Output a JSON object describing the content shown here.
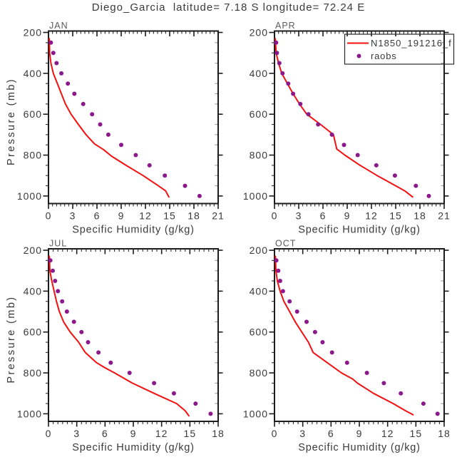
{
  "title": "Diego_Garcia  latitude= 7.18 S longitude= 72.24 E",
  "colors": {
    "model_line": "#f21010",
    "raobs_dot": "#8c188c",
    "axis": "#1c1c1c",
    "text": "#3a3a3a",
    "month_label": "#5a5a5a",
    "minor_tick_inside": "#9a9a9a",
    "background": "#ffffff"
  },
  "legend": {
    "entries": [
      {
        "label": "N1850_191216_f",
        "marker": "line",
        "color": "#f21010"
      },
      {
        "label": "raobs",
        "marker": "dot",
        "color": "#8c188c"
      }
    ]
  },
  "chart_data": [
    {
      "type": "line",
      "panel_label": "JAN",
      "xlabel": "Specific Humidity (g/kg)",
      "ylabel": "Pressure (mb)",
      "xlim": [
        0,
        21
      ],
      "xticks": [
        0,
        3,
        6,
        9,
        12,
        15,
        18,
        21
      ],
      "x_minor_step": 0.5,
      "ylim": [
        200,
        1000
      ],
      "yticks": [
        200,
        400,
        600,
        800,
        1000
      ],
      "y_minor_step": 50,
      "y_inverted": true,
      "series": [
        {
          "name": "N1850_191216_f",
          "type": "line",
          "color": "#f21010",
          "points": [
            [
              0.1,
              230
            ],
            [
              0.12,
              265
            ],
            [
              0.15,
              300
            ],
            [
              0.3,
              350
            ],
            [
              0.6,
              400
            ],
            [
              1.1,
              450
            ],
            [
              1.6,
              500
            ],
            [
              2.1,
              550
            ],
            [
              2.8,
              600
            ],
            [
              3.7,
              650
            ],
            [
              4.65,
              700
            ],
            [
              5.7,
              745
            ],
            [
              6.8,
              773
            ],
            [
              7.8,
              805
            ],
            [
              9.6,
              850
            ],
            [
              11.7,
              900
            ],
            [
              13.4,
              945
            ],
            [
              14.5,
              975
            ],
            [
              14.9,
              1005
            ]
          ]
        },
        {
          "name": "raobs",
          "type": "scatter",
          "color": "#8c188c",
          "points": [
            [
              0.3,
              250
            ],
            [
              0.6,
              300
            ],
            [
              1.0,
              350
            ],
            [
              1.6,
              400
            ],
            [
              2.4,
              450
            ],
            [
              3.2,
              500
            ],
            [
              4.3,
              550
            ],
            [
              5.4,
              600
            ],
            [
              6.4,
              650
            ],
            [
              7.4,
              700
            ],
            [
              9.0,
              750
            ],
            [
              10.8,
              800
            ],
            [
              12.5,
              850
            ],
            [
              14.4,
              900
            ],
            [
              16.9,
              950
            ],
            [
              18.7,
              1000
            ]
          ]
        }
      ]
    },
    {
      "type": "line",
      "panel_label": "APR",
      "xlabel": "Specific Humidity (g/kg)",
      "ylabel": "",
      "xlim": [
        0,
        21
      ],
      "xticks": [
        0,
        3,
        6,
        9,
        12,
        15,
        18,
        21
      ],
      "x_minor_step": 0.5,
      "ylim": [
        200,
        1000
      ],
      "yticks": [
        200,
        400,
        600,
        800,
        1000
      ],
      "y_minor_step": 50,
      "y_inverted": true,
      "series": [
        {
          "name": "N1850_191216_f",
          "type": "line",
          "color": "#f21010",
          "points": [
            [
              0.1,
              230
            ],
            [
              0.15,
              265
            ],
            [
              0.2,
              300
            ],
            [
              0.5,
              350
            ],
            [
              0.9,
              400
            ],
            [
              1.6,
              450
            ],
            [
              2.3,
              500
            ],
            [
              3.1,
              550
            ],
            [
              4.0,
              600
            ],
            [
              5.7,
              650
            ],
            [
              7.3,
              700
            ],
            [
              7.7,
              770
            ],
            [
              8.7,
              800
            ],
            [
              10.6,
              850
            ],
            [
              12.7,
              900
            ],
            [
              15.0,
              950
            ],
            [
              16.2,
              977
            ],
            [
              17.1,
              1005
            ]
          ]
        },
        {
          "name": "raobs",
          "type": "scatter",
          "color": "#8c188c",
          "points": [
            [
              0.2,
              250
            ],
            [
              0.3,
              300
            ],
            [
              0.6,
              350
            ],
            [
              1.0,
              400
            ],
            [
              1.7,
              450
            ],
            [
              2.3,
              500
            ],
            [
              3.2,
              550
            ],
            [
              4.2,
              600
            ],
            [
              5.4,
              650
            ],
            [
              7.1,
              700
            ],
            [
              8.6,
              750
            ],
            [
              10.3,
              800
            ],
            [
              12.6,
              850
            ],
            [
              14.9,
              900
            ],
            [
              17.5,
              950
            ],
            [
              19.1,
              1000
            ]
          ]
        }
      ]
    },
    {
      "type": "line",
      "panel_label": "JUL",
      "xlabel": "Specific Humidity (g/kg)",
      "ylabel": "Pressure (mb)",
      "xlim": [
        0,
        18
      ],
      "xticks": [
        0,
        3,
        6,
        9,
        12,
        15,
        18
      ],
      "x_minor_step": 0.5,
      "ylim": [
        200,
        1000
      ],
      "yticks": [
        200,
        400,
        600,
        800,
        1000
      ],
      "y_minor_step": 50,
      "y_inverted": true,
      "series": [
        {
          "name": "N1850_191216_f",
          "type": "line",
          "color": "#f21010",
          "points": [
            [
              0.1,
              230
            ],
            [
              0.12,
              265
            ],
            [
              0.15,
              300
            ],
            [
              0.35,
              350
            ],
            [
              0.6,
              400
            ],
            [
              0.85,
              450
            ],
            [
              1.15,
              500
            ],
            [
              1.6,
              550
            ],
            [
              2.3,
              600
            ],
            [
              3.2,
              650
            ],
            [
              3.9,
              700
            ],
            [
              5.1,
              750
            ],
            [
              6.0,
              775
            ],
            [
              7.0,
              800
            ],
            [
              8.9,
              850
            ],
            [
              11.2,
              900
            ],
            [
              13.6,
              950
            ],
            [
              14.5,
              985
            ],
            [
              14.9,
              1010
            ]
          ]
        },
        {
          "name": "raobs",
          "type": "scatter",
          "color": "#8c188c",
          "points": [
            [
              0.2,
              250
            ],
            [
              0.45,
              300
            ],
            [
              0.7,
              350
            ],
            [
              1.0,
              400
            ],
            [
              1.45,
              450
            ],
            [
              1.95,
              500
            ],
            [
              2.7,
              550
            ],
            [
              3.5,
              600
            ],
            [
              4.2,
              650
            ],
            [
              5.3,
              700
            ],
            [
              6.6,
              750
            ],
            [
              8.6,
              800
            ],
            [
              11.2,
              850
            ],
            [
              13.3,
              900
            ],
            [
              15.6,
              950
            ],
            [
              17.2,
              1000
            ]
          ]
        }
      ]
    },
    {
      "type": "line",
      "panel_label": "OCT",
      "xlabel": "Specific Humidity (g/kg)",
      "ylabel": "",
      "xlim": [
        0,
        18
      ],
      "xticks": [
        0,
        3,
        6,
        9,
        12,
        15,
        18
      ],
      "x_minor_step": 0.5,
      "ylim": [
        200,
        1000
      ],
      "yticks": [
        200,
        400,
        600,
        800,
        1000
      ],
      "y_minor_step": 50,
      "y_inverted": true,
      "series": [
        {
          "name": "N1850_191216_f",
          "type": "line",
          "color": "#f21010",
          "points": [
            [
              0.1,
              230
            ],
            [
              0.12,
              265
            ],
            [
              0.15,
              300
            ],
            [
              0.3,
              350
            ],
            [
              0.6,
              400
            ],
            [
              1.0,
              450
            ],
            [
              1.6,
              500
            ],
            [
              2.2,
              550
            ],
            [
              2.9,
              600
            ],
            [
              3.6,
              650
            ],
            [
              4.1,
              700
            ],
            [
              5.6,
              750
            ],
            [
              6.2,
              770
            ],
            [
              7.1,
              800
            ],
            [
              8.3,
              830
            ],
            [
              8.8,
              850
            ],
            [
              10.5,
              900
            ],
            [
              12.6,
              950
            ],
            [
              13.9,
              985
            ],
            [
              14.7,
              1005
            ]
          ]
        },
        {
          "name": "raobs",
          "type": "scatter",
          "color": "#8c188c",
          "points": [
            [
              0.2,
              250
            ],
            [
              0.4,
              300
            ],
            [
              0.6,
              350
            ],
            [
              0.9,
              400
            ],
            [
              1.6,
              450
            ],
            [
              2.4,
              500
            ],
            [
              3.4,
              550
            ],
            [
              4.3,
              600
            ],
            [
              5.1,
              650
            ],
            [
              6.1,
              700
            ],
            [
              7.7,
              750
            ],
            [
              9.8,
              800
            ],
            [
              11.6,
              850
            ],
            [
              13.4,
              900
            ],
            [
              15.8,
              950
            ],
            [
              17.3,
              1000
            ]
          ]
        }
      ]
    }
  ]
}
